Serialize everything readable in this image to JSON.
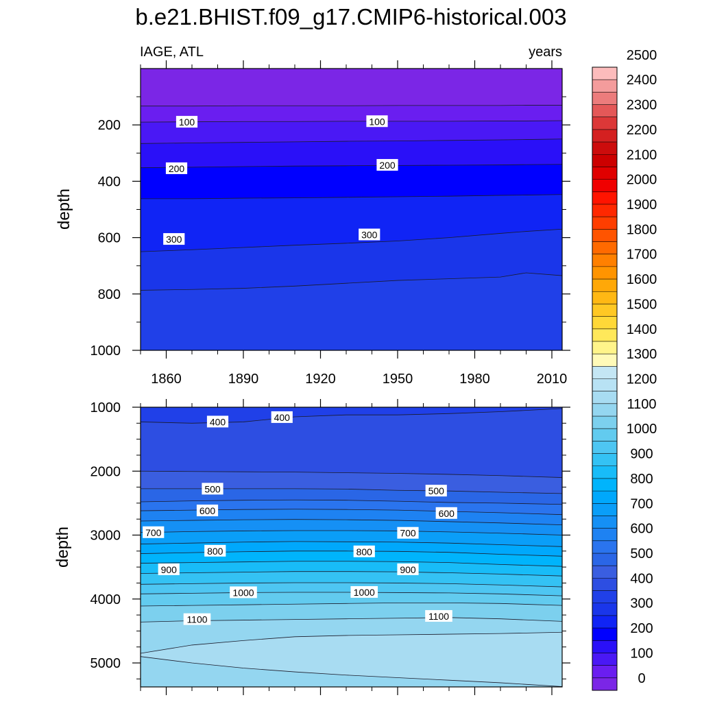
{
  "chart_data": [
    {
      "type": "heatmap",
      "title": "b.e21.BHIST.f09_g17.CMIP6-historical.003",
      "left_label": "IAGE, ATL",
      "right_label": "years",
      "ylabel": "depth",
      "xlim": [
        1850,
        2014
      ],
      "ylim": [
        1000,
        0
      ],
      "x_ticks": [
        1860,
        1890,
        1920,
        1950,
        1980,
        2010
      ],
      "y_ticks": [
        200,
        400,
        600,
        800,
        1000
      ],
      "x": [
        1850,
        1870,
        1890,
        1910,
        1930,
        1950,
        1970,
        1990,
        2000,
        2014
      ],
      "contours": [
        {
          "level": 50,
          "depths": [
            133,
            133,
            132,
            132,
            132,
            131,
            131,
            131,
            130,
            130
          ]
        },
        {
          "level": 100,
          "depths": [
            190,
            189,
            188,
            188,
            187,
            187,
            187,
            186,
            186,
            185
          ]
        },
        {
          "level": 150,
          "depths": [
            266,
            264,
            262,
            260,
            258,
            257,
            255,
            253,
            252,
            250
          ]
        },
        {
          "level": 200,
          "depths": [
            352,
            350,
            348,
            346,
            345,
            344,
            343,
            342,
            341,
            340
          ]
        },
        {
          "level": 250,
          "depths": [
            462,
            462,
            460,
            459,
            457,
            455,
            453,
            450,
            449,
            447
          ]
        },
        {
          "level": 300,
          "depths": [
            650,
            643,
            635,
            627,
            620,
            612,
            600,
            585,
            578,
            570
          ]
        },
        {
          "level": 350,
          "depths": [
            787,
            784,
            780,
            772,
            762,
            752,
            746,
            740,
            725,
            735
          ]
        }
      ],
      "contour_labels": [
        {
          "x": 1868,
          "y": 190,
          "text": "100"
        },
        {
          "x": 1942,
          "y": 188,
          "text": "100"
        },
        {
          "x": 1864,
          "y": 355,
          "text": "200"
        },
        {
          "x": 1946,
          "y": 343,
          "text": "200"
        },
        {
          "x": 1863,
          "y": 606,
          "text": "300"
        },
        {
          "x": 1939,
          "y": 590,
          "text": "300"
        }
      ]
    },
    {
      "type": "heatmap",
      "ylabel": "depth",
      "xlim": [
        1850,
        2014
      ],
      "ylim": [
        5375,
        1000
      ],
      "y_ticks": [
        1000,
        2000,
        3000,
        4000,
        5000
      ],
      "x": [
        1850,
        1870,
        1890,
        1910,
        1930,
        1950,
        1970,
        1990,
        2014
      ],
      "contours": [
        {
          "level": 400,
          "depths": [
            1230,
            1250,
            1230,
            1150,
            1120,
            1120,
            1100,
            1070,
            1020
          ]
        },
        {
          "level": 450,
          "depths": [
            2000,
            2005,
            2010,
            2015,
            2025,
            2035,
            2050,
            2070,
            2100
          ]
        },
        {
          "level": 500,
          "depths": [
            2275,
            2275,
            2275,
            2275,
            2280,
            2300,
            2310,
            2330,
            2350
          ]
        },
        {
          "level": 550,
          "depths": [
            2480,
            2465,
            2455,
            2450,
            2455,
            2470,
            2490,
            2500,
            2520
          ]
        },
        {
          "level": 600,
          "depths": [
            2620,
            2610,
            2600,
            2595,
            2600,
            2610,
            2630,
            2650,
            2680
          ]
        },
        {
          "level": 650,
          "depths": [
            2780,
            2770,
            2760,
            2755,
            2760,
            2770,
            2790,
            2810,
            2840
          ]
        },
        {
          "level": 700,
          "depths": [
            2960,
            2945,
            2935,
            2930,
            2930,
            2935,
            2950,
            2970,
            3000
          ]
        },
        {
          "level": 750,
          "depths": [
            3140,
            3125,
            3110,
            3100,
            3105,
            3110,
            3125,
            3150,
            3180
          ]
        },
        {
          "level": 800,
          "depths": [
            3290,
            3275,
            3260,
            3250,
            3250,
            3255,
            3270,
            3300,
            3330
          ]
        },
        {
          "level": 850,
          "depths": [
            3440,
            3430,
            3420,
            3410,
            3410,
            3415,
            3430,
            3460,
            3490
          ]
        },
        {
          "level": 900,
          "depths": [
            3600,
            3590,
            3580,
            3570,
            3570,
            3575,
            3590,
            3610,
            3640
          ]
        },
        {
          "level": 950,
          "depths": [
            3770,
            3760,
            3750,
            3745,
            3745,
            3750,
            3760,
            3780,
            3810
          ]
        },
        {
          "level": 1000,
          "depths": [
            3920,
            3910,
            3900,
            3895,
            3895,
            3900,
            3905,
            3920,
            3950
          ]
        },
        {
          "level": 1050,
          "depths": [
            4110,
            4100,
            4090,
            4080,
            4070,
            4060,
            4060,
            4070,
            4100
          ]
        },
        {
          "level": 1100,
          "depths": [
            4360,
            4340,
            4330,
            4320,
            4310,
            4300,
            4290,
            4310,
            4350
          ]
        },
        {
          "level": 1150,
          "depths": [
            4850,
            4720,
            4650,
            4590,
            4570,
            4560,
            4550,
            4540,
            4520
          ]
        },
        {
          "level": 1200,
          "depths": [
            4900,
            5000,
            5080,
            5140,
            5190,
            5230,
            5270,
            5310,
            5370
          ]
        }
      ],
      "contour_labels": [
        {
          "x": 1880,
          "y": 1230,
          "text": "400"
        },
        {
          "x": 1905,
          "y": 1160,
          "text": "400"
        },
        {
          "x": 1878,
          "y": 2280,
          "text": "500"
        },
        {
          "x": 1965,
          "y": 2310,
          "text": "500"
        },
        {
          "x": 1876,
          "y": 2620,
          "text": "600"
        },
        {
          "x": 1969,
          "y": 2660,
          "text": "600"
        },
        {
          "x": 1855,
          "y": 2960,
          "text": "700"
        },
        {
          "x": 1954,
          "y": 2970,
          "text": "700"
        },
        {
          "x": 1879,
          "y": 3250,
          "text": "800"
        },
        {
          "x": 1937,
          "y": 3260,
          "text": "800"
        },
        {
          "x": 1861,
          "y": 3540,
          "text": "900"
        },
        {
          "x": 1954,
          "y": 3540,
          "text": "900"
        },
        {
          "x": 1890,
          "y": 3900,
          "text": "1000"
        },
        {
          "x": 1937,
          "y": 3895,
          "text": "1000"
        },
        {
          "x": 1872,
          "y": 4320,
          "text": "1100"
        },
        {
          "x": 1966,
          "y": 4270,
          "text": "1100"
        }
      ]
    }
  ],
  "colorbar": {
    "labels": [
      "0",
      "100",
      "200",
      "300",
      "400",
      "500",
      "600",
      "700",
      "800",
      "900",
      "1000",
      "1100",
      "1200",
      "1300",
      "1400",
      "1500",
      "1600",
      "1700",
      "1800",
      "1900",
      "2000",
      "2100",
      "2200",
      "2300",
      "2400",
      "2500"
    ],
    "colors_bottom_to_top": [
      "#7b26e6",
      "#6a1ef0",
      "#4a18f5",
      "#2a10f8",
      "#0000ff",
      "#1024f5",
      "#1a36ea",
      "#2040e8",
      "#2d4ee2",
      "#3a5ee0",
      "#2a66e6",
      "#2a74ee",
      "#1e82f2",
      "#1590f5",
      "#0a9ef8",
      "#00a8fc",
      "#00b4fc",
      "#18bcf8",
      "#34c2f4",
      "#4ec6f2",
      "#62cbef",
      "#7cd0ee",
      "#94d6f0",
      "#a8dcf2",
      "#b8e2f4",
      "#c4e6f4",
      "#fffab8",
      "#fff48a",
      "#ffe85a",
      "#ffd838",
      "#ffc824",
      "#ffb814",
      "#ffa808",
      "#ff9400",
      "#ff8000",
      "#ff6a00",
      "#ff5400",
      "#ff3e00",
      "#ff2800",
      "#ff1400",
      "#f00000",
      "#e00000",
      "#cc0000",
      "#cc0c0c",
      "#d42020",
      "#dc3838",
      "#e45858",
      "#ec7c7c",
      "#f49c9c",
      "#fcbcbc"
    ]
  }
}
